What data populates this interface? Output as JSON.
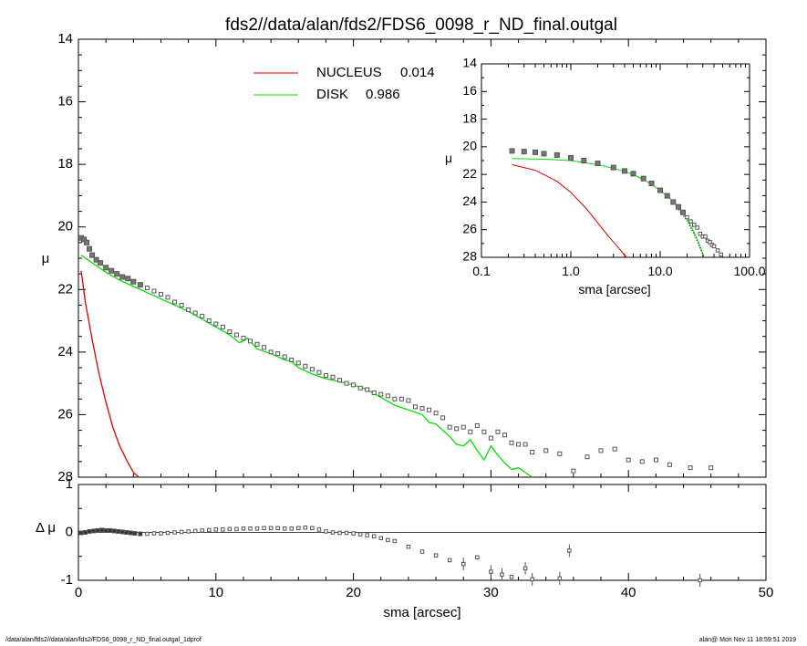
{
  "chart_data": [
    {
      "id": "main",
      "type": "scatter",
      "title": "fds2//data/alan/fds2/FDS6_0098_r_ND_final.outgal",
      "xlabel": "sma [arcsec]",
      "ylabel": "μ",
      "xlim": [
        0,
        50
      ],
      "ylim": [
        28,
        14
      ],
      "x_ticks": [
        "0",
        "10",
        "20",
        "30",
        "40",
        "50"
      ],
      "y_ticks": [
        "14",
        "16",
        "18",
        "20",
        "22",
        "24",
        "26",
        "28"
      ],
      "legend": [
        {
          "label": "NUCLEUS",
          "value": "0.014",
          "color": "#e00000"
        },
        {
          "label": "DISK",
          "value": "0.986",
          "color": "#00e000"
        }
      ],
      "data_points": {
        "x": [
          0.2,
          0.4,
          0.6,
          0.8,
          1.0,
          1.3,
          1.6,
          2.0,
          2.4,
          2.8,
          3.2,
          3.6,
          4.0,
          4.5,
          5.0,
          5.5,
          6.0,
          6.5,
          7.0,
          7.5,
          8.0,
          8.5,
          9.0,
          9.5,
          10.0,
          10.5,
          11.0,
          11.5,
          12.0,
          12.5,
          13.0,
          13.5,
          14.0,
          14.5,
          15.0,
          15.5,
          16.0,
          16.5,
          17.0,
          17.5,
          18.0,
          18.5,
          19.0,
          19.5,
          20.0,
          20.5,
          21.0,
          21.5,
          22.0,
          22.5,
          23.0,
          23.5,
          24.0,
          24.5,
          25.0,
          25.5,
          26.0,
          26.5,
          27.0,
          27.5,
          28.0,
          28.5,
          29.0,
          29.5,
          30.0,
          30.5,
          31.0,
          31.5,
          32.0,
          32.5,
          33.0,
          34.0,
          35.0,
          36.0,
          37.0,
          38.0,
          39.0,
          40.0,
          41.0,
          42.0,
          43.0,
          44.5,
          46.0
        ],
        "y": [
          20.35,
          20.4,
          20.5,
          20.7,
          20.9,
          21.05,
          21.15,
          21.3,
          21.4,
          21.5,
          21.6,
          21.65,
          21.75,
          21.85,
          21.95,
          22.05,
          22.15,
          22.25,
          22.4,
          22.5,
          22.65,
          22.75,
          22.85,
          23.0,
          23.1,
          23.2,
          23.35,
          23.45,
          23.55,
          23.65,
          23.75,
          23.85,
          24.0,
          24.05,
          24.15,
          24.25,
          24.35,
          24.45,
          24.55,
          24.65,
          24.75,
          24.8,
          24.9,
          25.0,
          25.05,
          25.15,
          25.2,
          25.3,
          25.35,
          25.4,
          25.5,
          25.5,
          25.55,
          25.75,
          25.8,
          25.85,
          25.95,
          26.1,
          26.4,
          26.45,
          26.4,
          26.55,
          26.35,
          26.55,
          26.75,
          26.55,
          26.65,
          26.9,
          26.95,
          26.95,
          27.2,
          27.15,
          27.25,
          27.8,
          27.35,
          27.15,
          27.1,
          27.45,
          27.5,
          27.45,
          27.6,
          27.7,
          27.7
        ]
      },
      "nucleus_line": {
        "x": [
          0.2,
          0.5,
          1.0,
          1.5,
          2.0,
          2.5,
          3.0,
          3.5,
          4.0,
          4.4
        ],
        "y": [
          21.4,
          22.4,
          23.6,
          24.7,
          25.6,
          26.4,
          27.0,
          27.45,
          27.85,
          28.0
        ]
      },
      "disk_line": {
        "x": [
          0.2,
          1,
          2,
          3,
          4,
          5,
          6,
          7,
          8,
          9,
          10,
          11,
          11.7,
          12,
          12.3,
          13,
          14,
          15,
          15.5,
          16,
          17,
          18,
          19,
          20,
          21,
          22,
          23,
          24,
          25,
          25.5,
          26,
          27,
          27.5,
          28,
          28.5,
          29,
          29.5,
          30,
          30.5,
          31,
          31.5,
          32,
          32.5,
          33
        ],
        "y": [
          20.9,
          21.15,
          21.45,
          21.7,
          21.9,
          22.1,
          22.3,
          22.5,
          22.7,
          22.95,
          23.2,
          23.45,
          23.7,
          23.65,
          23.55,
          23.9,
          24.05,
          24.25,
          24.3,
          24.5,
          24.7,
          24.85,
          24.95,
          25.05,
          25.2,
          25.45,
          25.7,
          25.85,
          26.0,
          26.25,
          26.3,
          26.7,
          26.95,
          27.0,
          26.8,
          27.15,
          27.45,
          27.0,
          27.3,
          27.55,
          27.75,
          27.7,
          27.85,
          28.0
        ]
      }
    },
    {
      "id": "residual",
      "type": "scatter",
      "xlabel": "sma [arcsec]",
      "ylabel": "Δ μ",
      "xlim": [
        0,
        50
      ],
      "ylim": [
        -1,
        1
      ],
      "y_ticks": [
        "1",
        "0",
        "-1"
      ],
      "zero_line": 0,
      "data_points": {
        "x": [
          0.2,
          0.5,
          0.8,
          1.1,
          1.4,
          1.7,
          2.0,
          2.3,
          2.6,
          2.9,
          3.2,
          3.5,
          3.8,
          4.1,
          4.5,
          5.0,
          5.5,
          6.0,
          6.5,
          7.0,
          7.5,
          8.0,
          8.5,
          9.0,
          9.5,
          10.0,
          10.5,
          11.0,
          11.5,
          12.0,
          12.5,
          13.0,
          13.5,
          14.0,
          14.5,
          15.0,
          15.5,
          16.0,
          16.5,
          17.0,
          17.5,
          18.0,
          18.5,
          19.0,
          19.5,
          20.0,
          20.5,
          21.0,
          21.5,
          22.0,
          22.5,
          23.0,
          24.0,
          25.0,
          26.0,
          27.0,
          28.0,
          29.0,
          30.0,
          30.8,
          31.5,
          32.5,
          33.0,
          35.0,
          35.7,
          45.2
        ],
        "y": [
          -0.01,
          0.0,
          0.02,
          0.03,
          0.04,
          0.05,
          0.04,
          0.04,
          0.03,
          0.02,
          0.01,
          0.0,
          -0.01,
          -0.02,
          -0.03,
          -0.03,
          -0.02,
          -0.02,
          -0.01,
          0.0,
          0.01,
          0.02,
          0.03,
          0.04,
          0.05,
          0.06,
          0.06,
          0.07,
          0.07,
          0.08,
          0.08,
          0.08,
          0.09,
          0.09,
          0.09,
          0.08,
          0.08,
          0.09,
          0.1,
          0.09,
          0.06,
          0.02,
          0.0,
          -0.01,
          -0.01,
          -0.02,
          -0.04,
          -0.06,
          -0.08,
          -0.12,
          -0.16,
          -0.18,
          -0.3,
          -0.4,
          -0.48,
          -0.58,
          -0.66,
          -0.52,
          -0.82,
          -0.88,
          -0.93,
          -0.75,
          -0.98,
          -0.96,
          -0.38,
          -1.0
        ]
      },
      "error_bar_indices": [
        56,
        58,
        59,
        61,
        62,
        63,
        64,
        65
      ]
    },
    {
      "id": "inset",
      "type": "scatter",
      "xlabel": "sma [arcsec]",
      "ylabel": "μ",
      "xscale": "log",
      "xlim": [
        0.1,
        100
      ],
      "ylim": [
        28,
        14
      ],
      "x_ticks": [
        "0.1",
        "1.0",
        "10.0",
        "100.0"
      ],
      "y_ticks": [
        "14",
        "16",
        "18",
        "20",
        "22",
        "24",
        "26",
        "28"
      ],
      "data_points": {
        "x": [
          0.22,
          0.3,
          0.4,
          0.5,
          0.7,
          1.0,
          1.4,
          2.0,
          3.0,
          4.0,
          5.0,
          6.5,
          8.0,
          10.0,
          12.0,
          14.0,
          16.0,
          18.0,
          20.0,
          22.0,
          24.0,
          26.0,
          28.0,
          30.0,
          32.0,
          34.0,
          36.0,
          38.0,
          40.0,
          44.0,
          48.0
        ],
        "y": [
          20.3,
          20.35,
          20.4,
          20.5,
          20.6,
          20.8,
          21.0,
          21.2,
          21.5,
          21.75,
          21.95,
          22.3,
          22.65,
          23.15,
          23.55,
          24.0,
          24.35,
          24.75,
          25.1,
          25.4,
          25.65,
          25.85,
          26.3,
          26.5,
          26.5,
          26.8,
          26.9,
          27.1,
          27.2,
          27.5,
          27.8
        ]
      },
      "nucleus_line": {
        "x": [
          0.22,
          0.4,
          0.7,
          1.0,
          1.5,
          2.0,
          2.5,
          3.0,
          3.5,
          4.2
        ],
        "y": [
          21.3,
          21.7,
          22.5,
          23.3,
          24.5,
          25.5,
          26.3,
          26.9,
          27.4,
          28.0
        ]
      },
      "disk_line": {
        "x": [
          0.22,
          0.5,
          1.0,
          2.0,
          3.0,
          5.0,
          7.0,
          10.0,
          13.0,
          16.0,
          20.0,
          24.0,
          28.0,
          31.0
        ],
        "y": [
          20.85,
          20.9,
          21.0,
          21.3,
          21.55,
          22.0,
          22.5,
          23.15,
          23.8,
          24.4,
          25.2,
          26.2,
          27.2,
          28.0
        ]
      }
    }
  ],
  "footer": {
    "left": "/data/alan/fds2//data/alan/fds2/FDS6_0098_r_ND_final.outgal_1dprof",
    "right": "alan@  Mon Nov 11 18:59:51 2019"
  },
  "colors": {
    "nucleus": "#e00000",
    "disk": "#00e000",
    "points": "#555555"
  }
}
